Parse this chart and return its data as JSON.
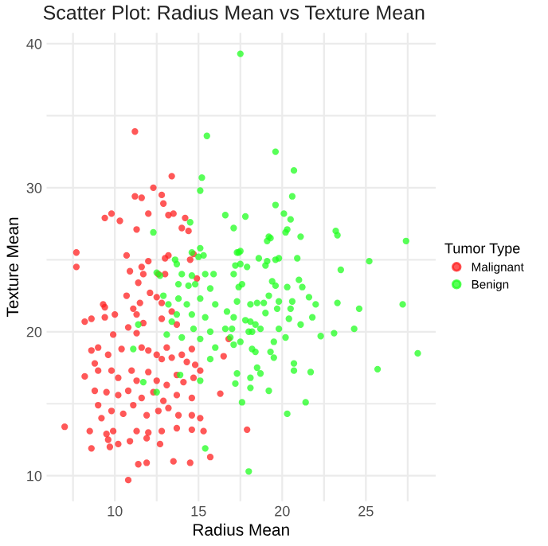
{
  "chart_data": {
    "type": "scatter",
    "title": "Scatter Plot: Radius Mean vs Texture Mean",
    "xlabel": "Radius Mean",
    "ylabel": "Texture Mean",
    "legend_title": "Tumor Type",
    "legend": "right",
    "grid": true,
    "marker": "circle",
    "xlim": [
      5.92,
      29.17
    ],
    "ylim": [
      8.23,
      40.76
    ],
    "xticks": [
      {
        "value": 7.5,
        "label": null
      },
      10,
      {
        "value": 12.5,
        "label": null
      },
      15,
      {
        "value": 17.5,
        "label": null
      },
      20,
      {
        "value": 22.5,
        "label": null
      },
      25,
      {
        "value": 27.5,
        "label": null
      }
    ],
    "yticks": [
      10,
      {
        "value": 15,
        "label": null
      },
      20,
      {
        "value": 25,
        "label": null
      },
      30,
      {
        "value": 35,
        "label": null
      },
      40
    ],
    "series": [
      {
        "name": "Malignant",
        "color": "#ff2020",
        "x": [
          11.2,
          13.4,
          12.3,
          11.2,
          11.6,
          12.8,
          12.9,
          12.0,
          13.5,
          13.2,
          9.8,
          9.4,
          10.3,
          14.2,
          11.3,
          14.0,
          14.4,
          14.7,
          7.7,
          7.7,
          10.7,
          12.0,
          13.0,
          13.2,
          14.5,
          11.6,
          11.7,
          10.9,
          12.6,
          13.0,
          14.9,
          11.4,
          12.1,
          9.3,
          9.4,
          10.7,
          11.5,
          12.5,
          12.8,
          13.4,
          11.1,
          11.3,
          8.6,
          8.2,
          9.4,
          10.0,
          11.7,
          12.8,
          13.7,
          10.8,
          11.3,
          9.9,
          9.0,
          8.6,
          9.6,
          10.4,
          11.6,
          12.0,
          12.5,
          13.1,
          12.8,
          13.4,
          14.0,
          14.6,
          14.3,
          14.8,
          15.1,
          14.7,
          8.8,
          8.2,
          9.0,
          9.8,
          10.2,
          11.0,
          11.3,
          12.0,
          12.5,
          13.1,
          13.7,
          14.1,
          8.8,
          9.5,
          10.2,
          10.8,
          11.6,
          12.3,
          12.9,
          13.7,
          14.6,
          9.0,
          9.8,
          10.5,
          11.1,
          11.9,
          12.6,
          13.2,
          13.8,
          14.6,
          15.1,
          9.2,
          7.0,
          8.5,
          9.5,
          9.9,
          11.3,
          12.0,
          12.8,
          13.7,
          14.6,
          15.3,
          9.6,
          10.2,
          10.9,
          11.9,
          12.7,
          8.6,
          9.7,
          15.7,
          11.4,
          11.9,
          13.5,
          14.5,
          10.8,
          16.8,
          16.5,
          16.3,
          17.9
        ],
        "values": [
          33.9,
          30.8,
          30.0,
          29.4,
          29.3,
          29.5,
          28.9,
          28.2,
          28.2,
          28.1,
          28.2,
          27.9,
          27.7,
          27.9,
          27.1,
          27.2,
          27.0,
          25.4,
          25.5,
          24.5,
          25.3,
          24.9,
          25.1,
          25.3,
          25.0,
          24.5,
          24.0,
          24.2,
          24.0,
          24.0,
          23.7,
          23.4,
          22.7,
          21.9,
          21.7,
          22.5,
          22.0,
          22.4,
          22.0,
          21.4,
          21.6,
          21.2,
          20.9,
          20.7,
          21.0,
          21.2,
          20.6,
          20.9,
          20.5,
          20.3,
          19.9,
          19.8,
          18.9,
          18.7,
          18.4,
          18.8,
          18.9,
          18.7,
          18.4,
          18.9,
          18.1,
          18.2,
          18.4,
          18.8,
          17.9,
          17.7,
          17.3,
          16.8,
          17.8,
          16.9,
          17.3,
          17.3,
          16.8,
          17.3,
          16.6,
          17.2,
          16.6,
          16.3,
          17.0,
          16.5,
          15.9,
          15.8,
          15.6,
          15.9,
          15.4,
          15.8,
          15.2,
          15.6,
          15.4,
          14.9,
          14.5,
          14.3,
          14.9,
          14.2,
          14.5,
          14.7,
          14.2,
          14.2,
          14.0,
          14.0,
          13.4,
          13.1,
          12.9,
          13.1,
          13.1,
          13.0,
          13.1,
          13.3,
          13.2,
          13.1,
          12.5,
          12.2,
          12.4,
          12.6,
          12.2,
          11.9,
          12.0,
          11.3,
          10.8,
          10.9,
          11.0,
          10.9,
          9.7,
          19.5,
          18.3,
          15.7,
          13.2
        ]
      },
      {
        "name": "Benign",
        "color": "#20ff20",
        "x": [
          17.5,
          15.5,
          15.2,
          15.1,
          16.6,
          17.8,
          14.5,
          12.3,
          17.1,
          15.1,
          15.3,
          15.0,
          17.3,
          17.5,
          13.6,
          13.7,
          17.2,
          17.5,
          19.6,
          20.7,
          20.6,
          19.6,
          20.1,
          20.5,
          20.3,
          20.2,
          19.2,
          19.3,
          19.1,
          21.1,
          23.2,
          23.3,
          27.4,
          18.6,
          20.9,
          19.6,
          19.8,
          19.1,
          19.0,
          25.2,
          17.9,
          14.6,
          12.5,
          12.7,
          14.0,
          14.6,
          15.4,
          15.9,
          13.8,
          14.4,
          14.8,
          15.7,
          12.9,
          13.2,
          13.8,
          14.3,
          15.1,
          16.0,
          13.7,
          14.6,
          15.4,
          13.4,
          11.4,
          14.7,
          15.7,
          13.1,
          14.0,
          15.1,
          11.1,
          16.0,
          15.7,
          13.9,
          11.7,
          15.1,
          12.5,
          15.4,
          17.4,
          23.5,
          17.1,
          17.6,
          17.4,
          19.4,
          19.6,
          20.3,
          21.2,
          21.0,
          19.2,
          17.3,
          18.1,
          18.5,
          18.9,
          19.8,
          20.6,
          21.6,
          22.0,
          23.3,
          24.6,
          27.2,
          16.7,
          17.1,
          17.8,
          18.1,
          19.0,
          19.7,
          20.5,
          20.4,
          21.8,
          18.4,
          18.7,
          19.8,
          21.1,
          16.6,
          17.0,
          18.0,
          18.2,
          20.2,
          22.3,
          23.1,
          24.3,
          17.5,
          17.1,
          19.5,
          18.2,
          18.4,
          19.3,
          19.5,
          20.7,
          20.7,
          21.7,
          28.1,
          25.7,
          18.5,
          18.7,
          17.3,
          18.1,
          17.2,
          18.1,
          19.2,
          17.6,
          21.4,
          20.3,
          18.0,
          16.9
        ],
        "values": [
          39.3,
          33.6,
          30.7,
          29.8,
          28.1,
          28.0,
          27.6,
          26.9,
          27.2,
          25.8,
          25.3,
          25.2,
          25.5,
          25.6,
          25.0,
          24.7,
          24.6,
          24.7,
          32.5,
          31.2,
          29.4,
          28.8,
          28.2,
          27.8,
          27.1,
          26.9,
          26.6,
          26.5,
          26.3,
          26.6,
          27.0,
          26.7,
          26.3,
          25.1,
          25.1,
          25.0,
          25.1,
          24.9,
          24.6,
          24.9,
          24.5,
          25.5,
          24.1,
          23.9,
          24.0,
          23.9,
          24.0,
          24.0,
          23.3,
          23.2,
          23.3,
          23.0,
          22.5,
          21.9,
          22.3,
          21.9,
          22.3,
          21.9,
          21.2,
          21.2,
          21.0,
          20.7,
          20.5,
          20.2,
          20.0,
          19.8,
          19.6,
          19.5,
          18.8,
          18.9,
          18.1,
          17.0,
          16.5,
          16.6,
          15.8,
          11.9,
          25.5,
          24.3,
          24.0,
          23.3,
          23.1,
          23.5,
          23.2,
          23.1,
          23.1,
          23.6,
          22.5,
          22.1,
          21.9,
          22.0,
          22.0,
          22.1,
          22.1,
          22.4,
          21.9,
          22.0,
          21.6,
          21.9,
          21.4,
          21.0,
          20.8,
          20.7,
          21.3,
          21.6,
          21.6,
          20.9,
          21.0,
          20.5,
          20.2,
          20.2,
          20.5,
          20.2,
          20.2,
          20.0,
          20.0,
          19.6,
          19.7,
          19.9,
          20.2,
          19.3,
          19.1,
          19.3,
          18.8,
          18.6,
          18.6,
          18.2,
          17.8,
          17.3,
          17.2,
          18.5,
          17.4,
          17.5,
          17.1,
          17.1,
          16.8,
          16.4,
          16.1,
          15.9,
          15.1,
          15.1,
          14.3,
          10.3,
          19.6
        ]
      }
    ]
  }
}
